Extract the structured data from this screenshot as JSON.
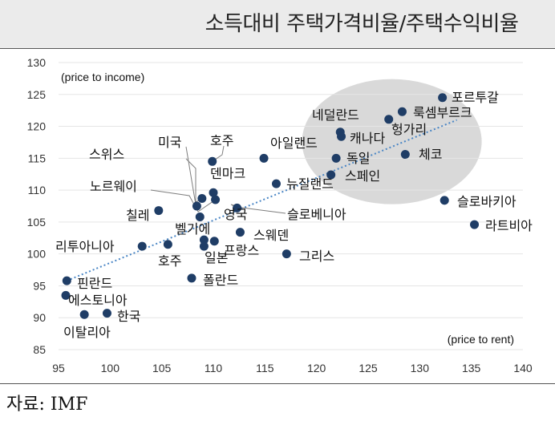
{
  "title": "소득대비 주택가격비율/주택수익비율",
  "source": "자료: IMF",
  "colors": {
    "dot": "#1f3d66",
    "trend": "#4a86c5",
    "highlight": "#d9d9d9",
    "grid": "#e5e5e5"
  },
  "chart_data": {
    "type": "scatter",
    "ylabel": "(price to income)",
    "xlabel": "(price to rent)",
    "xlim": [
      95,
      140
    ],
    "ylim": [
      85,
      130
    ],
    "xticks": [
      95,
      100,
      105,
      110,
      115,
      120,
      125,
      130,
      135,
      140
    ],
    "yticks": [
      85,
      90,
      95,
      100,
      105,
      110,
      115,
      120,
      125,
      130
    ],
    "grid": "horizontal",
    "trendline": {
      "style": "dotted",
      "from": [
        95.8,
        95.8
      ],
      "to": [
        133.6,
        121.0
      ]
    },
    "highlight_region": "upper-right",
    "points": [
      {
        "label": "포르투갈",
        "x": 132.2,
        "y": 124.5
      },
      {
        "label": "룩셈부르크",
        "x": 128.3,
        "y": 122.3
      },
      {
        "label": "네덜란드",
        "x": 127.0,
        "y": 121.1
      },
      {
        "label": "헝가리",
        "x": 122.3,
        "y": 119.1
      },
      {
        "label": "캐나다",
        "x": 122.4,
        "y": 118.4
      },
      {
        "label": "체코",
        "x": 128.6,
        "y": 115.6
      },
      {
        "label": "독일",
        "x": 121.9,
        "y": 115.0
      },
      {
        "label": "스페인",
        "x": 121.4,
        "y": 112.4
      },
      {
        "label": "아일랜드",
        "x": 114.9,
        "y": 115.0
      },
      {
        "label": "뉴질랜드",
        "x": 116.1,
        "y": 111.0
      },
      {
        "label": "호주",
        "x": 109.9,
        "y": 114.5
      },
      {
        "label": "미국",
        "x": 108.4,
        "y": 107.5
      },
      {
        "label": "스위스",
        "x": 108.9,
        "y": 108.7
      },
      {
        "label": "덴마크",
        "x": 110.0,
        "y": 109.6
      },
      {
        "label": "노르웨이",
        "x": 110.2,
        "y": 108.5
      },
      {
        "label": "슬로베니아",
        "x": 112.3,
        "y": 107.2
      },
      {
        "label": "칠레",
        "x": 104.7,
        "y": 106.8
      },
      {
        "label": "영국",
        "x": 108.7,
        "y": 105.8
      },
      {
        "label": "벨기에",
        "x": 109.1,
        "y": 102.2
      },
      {
        "label": "스웨덴",
        "x": 112.6,
        "y": 103.4
      },
      {
        "label": "프랑스",
        "x": 109.1,
        "y": 101.2
      },
      {
        "label": "일본",
        "x": 110.1,
        "y": 102.0
      },
      {
        "label": "그리스",
        "x": 117.1,
        "y": 100.0
      },
      {
        "label": "리투아니아",
        "x": 103.1,
        "y": 101.2
      },
      {
        "label": "호주",
        "x": 105.6,
        "y": 101.5
      },
      {
        "label": "폴란드",
        "x": 107.9,
        "y": 96.2
      },
      {
        "label": "핀란드",
        "x": 95.8,
        "y": 95.8
      },
      {
        "label": "에스토니아",
        "x": 95.7,
        "y": 93.5
      },
      {
        "label": "한국",
        "x": 99.7,
        "y": 90.7
      },
      {
        "label": "이탈리아",
        "x": 97.5,
        "y": 90.5
      },
      {
        "label": "슬로바키아",
        "x": 132.4,
        "y": 108.4
      },
      {
        "label": "라트비아",
        "x": 135.3,
        "y": 104.6
      }
    ]
  }
}
